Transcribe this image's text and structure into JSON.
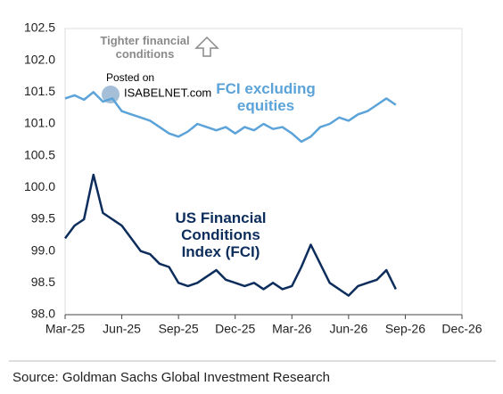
{
  "chart_data": {
    "type": "line",
    "annotations": [
      "Tighter financial conditions",
      "Posted on",
      "ISABELNET.com"
    ],
    "source": "Source: Goldman Sachs Global Investment Research",
    "x": [
      0,
      0.5,
      1,
      1.5,
      2,
      2.5,
      3,
      3.5,
      4,
      4.5,
      5,
      5.5,
      6,
      6.5,
      7,
      7.5,
      8,
      8.5,
      9,
      9.5,
      10,
      10.5,
      11,
      11.5,
      12,
      12.5,
      13,
      13.5,
      14,
      14.5,
      15,
      15.5,
      16,
      16.5,
      17,
      17.5
    ],
    "series": [
      {
        "name": "FCI excluding equities",
        "color": "#5ba3d9",
        "values": [
          101.4,
          101.45,
          101.38,
          101.5,
          101.35,
          101.4,
          101.2,
          101.15,
          101.1,
          101.05,
          100.95,
          100.85,
          100.8,
          100.88,
          101.0,
          100.95,
          100.9,
          100.95,
          100.85,
          100.95,
          100.9,
          101.0,
          100.92,
          100.95,
          100.85,
          100.72,
          100.8,
          100.95,
          101.0,
          101.1,
          101.05,
          101.15,
          101.2,
          101.3,
          101.4,
          101.3
        ]
      },
      {
        "name": "US Financial Conditions Index (FCI)",
        "color": "#0d2d5c",
        "values": [
          99.2,
          99.4,
          99.5,
          100.2,
          99.6,
          99.5,
          99.4,
          99.2,
          99.0,
          98.95,
          98.8,
          98.75,
          98.5,
          98.45,
          98.5,
          98.6,
          98.7,
          98.55,
          98.5,
          98.45,
          98.5,
          98.4,
          98.5,
          98.4,
          98.45,
          98.75,
          99.1,
          98.8,
          98.5,
          98.4,
          98.3,
          98.45,
          98.5,
          98.55,
          98.7,
          98.4
        ]
      }
    ],
    "xlim": [
      0,
      21
    ],
    "xticks": [
      {
        "value": 0,
        "label": "Mar-25"
      },
      {
        "value": 3,
        "label": "Jun-25"
      },
      {
        "value": 6,
        "label": "Sep-25"
      },
      {
        "value": 9,
        "label": "Dec-25"
      },
      {
        "value": 12,
        "label": "Mar-26"
      },
      {
        "value": 15,
        "label": "Jun-26"
      },
      {
        "value": 18,
        "label": "Sep-26"
      },
      {
        "value": 21,
        "label": "Dec-26"
      }
    ],
    "ylim": [
      98,
      102.5
    ],
    "yticks": [
      {
        "value": 98,
        "label": "98.0"
      },
      98.5,
      {
        "value": 99,
        "label": "99.0"
      },
      99.5,
      {
        "value": 100,
        "label": "100.0"
      },
      100.5,
      {
        "value": 101,
        "label": "101.0"
      },
      101.5,
      {
        "value": 102,
        "label": "102.0"
      },
      102.5
    ],
    "grid": false
  }
}
